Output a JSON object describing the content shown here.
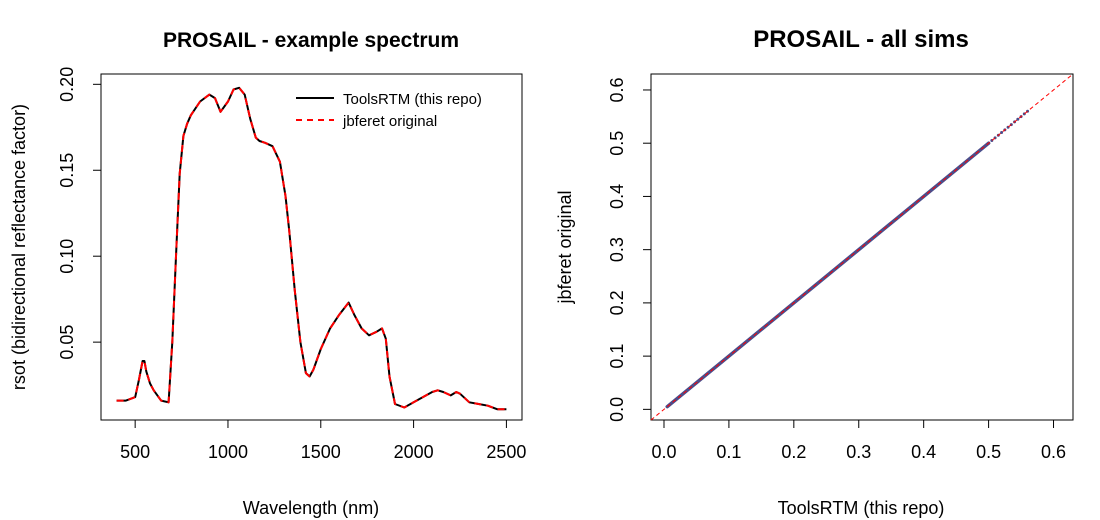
{
  "chart_data": [
    {
      "type": "line",
      "title": "PROSAIL - example spectrum",
      "xlabel": "Wavelength (nm)",
      "ylabel": "rsot (bidirectional reflectance factor)",
      "xlim": [
        400,
        2500
      ],
      "ylim": [
        0.01,
        0.2
      ],
      "xticks": [
        "500",
        "1000",
        "1500",
        "2000",
        "2500"
      ],
      "yticks": [
        "0.05",
        "0.10",
        "0.15",
        "0.20"
      ],
      "legend_position": "top-right",
      "x": [
        400,
        450,
        500,
        520,
        540,
        550,
        560,
        580,
        600,
        640,
        680,
        700,
        720,
        740,
        760,
        780,
        800,
        850,
        900,
        930,
        960,
        1000,
        1030,
        1060,
        1090,
        1120,
        1150,
        1170,
        1200,
        1240,
        1280,
        1310,
        1330,
        1360,
        1390,
        1420,
        1440,
        1460,
        1500,
        1550,
        1600,
        1650,
        1680,
        1720,
        1760,
        1800,
        1830,
        1850,
        1870,
        1900,
        1950,
        2000,
        2050,
        2100,
        2130,
        2160,
        2200,
        2230,
        2250,
        2300,
        2350,
        2400,
        2450,
        2500
      ],
      "series": [
        {
          "name": "ToolsRTM (this repo)",
          "color": "#000000",
          "dash": "solid",
          "values": [
            0.016,
            0.016,
            0.018,
            0.028,
            0.039,
            0.039,
            0.033,
            0.026,
            0.022,
            0.016,
            0.015,
            0.05,
            0.1,
            0.148,
            0.17,
            0.177,
            0.182,
            0.19,
            0.194,
            0.192,
            0.184,
            0.19,
            0.197,
            0.198,
            0.194,
            0.18,
            0.169,
            0.167,
            0.166,
            0.164,
            0.155,
            0.135,
            0.115,
            0.08,
            0.05,
            0.032,
            0.03,
            0.034,
            0.046,
            0.058,
            0.066,
            0.073,
            0.066,
            0.058,
            0.054,
            0.056,
            0.058,
            0.052,
            0.03,
            0.014,
            0.012,
            0.015,
            0.018,
            0.021,
            0.022,
            0.021,
            0.019,
            0.021,
            0.02,
            0.015,
            0.014,
            0.013,
            0.011,
            0.011
          ]
        },
        {
          "name": "jbferet original",
          "color": "#FF0000",
          "dash": "dashed",
          "values": [
            0.016,
            0.016,
            0.018,
            0.028,
            0.039,
            0.039,
            0.033,
            0.026,
            0.022,
            0.016,
            0.015,
            0.05,
            0.1,
            0.148,
            0.17,
            0.177,
            0.182,
            0.19,
            0.194,
            0.192,
            0.184,
            0.19,
            0.197,
            0.198,
            0.194,
            0.18,
            0.169,
            0.167,
            0.166,
            0.164,
            0.155,
            0.135,
            0.115,
            0.08,
            0.05,
            0.032,
            0.03,
            0.034,
            0.046,
            0.058,
            0.066,
            0.073,
            0.066,
            0.058,
            0.054,
            0.056,
            0.058,
            0.052,
            0.03,
            0.014,
            0.012,
            0.015,
            0.018,
            0.021,
            0.022,
            0.021,
            0.019,
            0.021,
            0.02,
            0.015,
            0.014,
            0.013,
            0.011,
            0.011
          ]
        }
      ]
    },
    {
      "type": "scatter",
      "title": "PROSAIL - all sims",
      "xlabel": "ToolsRTM (this repo)",
      "ylabel": "jbferet original",
      "xlim": [
        -0.02,
        0.63
      ],
      "ylim": [
        -0.02,
        0.63
      ],
      "xticks": [
        "0.0",
        "0.1",
        "0.2",
        "0.3",
        "0.4",
        "0.5",
        "0.6"
      ],
      "yticks": [
        "0.0",
        "0.1",
        "0.2",
        "0.3",
        "0.4",
        "0.5",
        "0.6"
      ],
      "points_color": "#4A4E8C",
      "points_range": [
        0.005,
        0.5
      ],
      "sparse_points_range": [
        0.5,
        0.56
      ],
      "reference_line": {
        "slope": 1,
        "intercept": 0,
        "color": "#FF0000",
        "dash": "dashed"
      }
    }
  ]
}
